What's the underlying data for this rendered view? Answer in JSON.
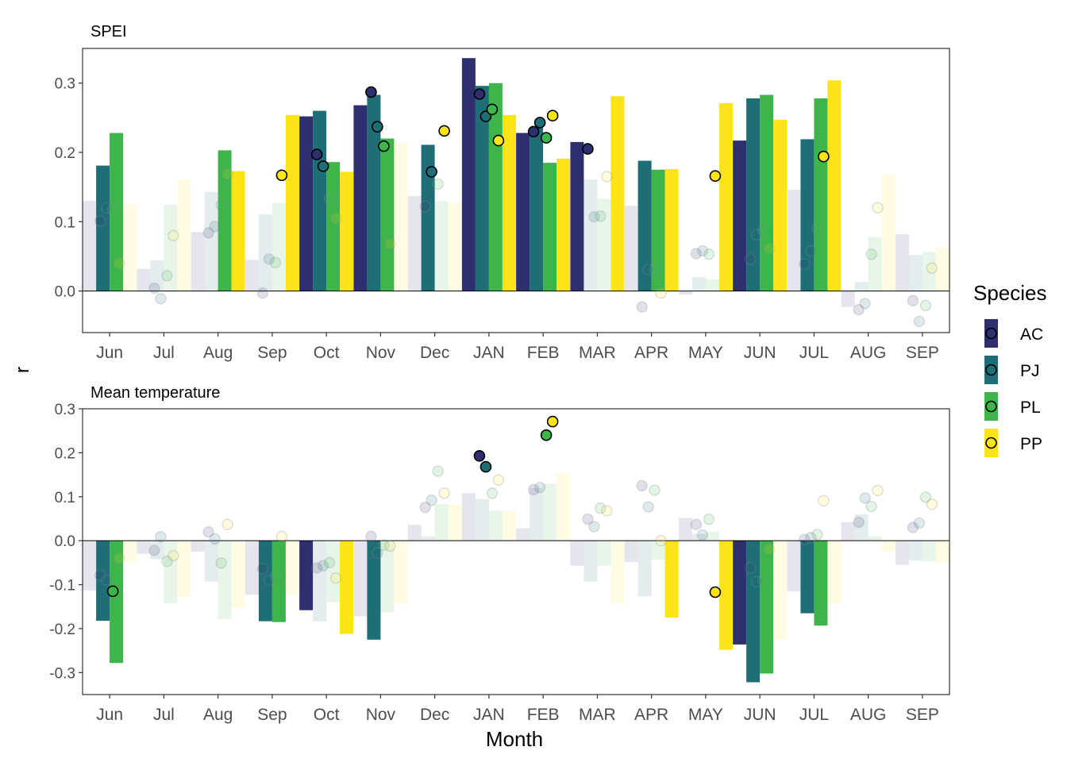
{
  "y_axis_label": "r",
  "x_axis_label": "Month",
  "legend": {
    "title": "Species",
    "items": [
      {
        "label": "AC",
        "color": "#2D2F6E"
      },
      {
        "label": "PJ",
        "color": "#1E6E77"
      },
      {
        "label": "PL",
        "color": "#3DB54A"
      },
      {
        "label": "PP",
        "color": "#FDE417"
      }
    ]
  },
  "chart_data": [
    {
      "type": "bar",
      "title": "SPEI",
      "xlabel": "Month",
      "ylabel": "r",
      "ylim": [
        -0.06,
        0.35
      ],
      "yticks": [
        0.0,
        0.1,
        0.2,
        0.3
      ],
      "ytick_labels": [
        "0.0",
        "0.1",
        "0.2",
        "0.3"
      ],
      "grid": false,
      "legend_position": "right",
      "categories": [
        "Jun",
        "Jul",
        "Aug",
        "Sep",
        "Oct",
        "Nov",
        "Dec",
        "JAN",
        "FEB",
        "MAR",
        "APR",
        "MAY",
        "JUN",
        "JUL",
        "AUG",
        "SEP"
      ],
      "series": [
        {
          "name": "AC",
          "bar_values": [
            0.13,
            0.032,
            0.085,
            0.045,
            0.252,
            0.268,
            0.137,
            0.336,
            0.228,
            0.215,
            0.123,
            -0.005,
            0.217,
            0.146,
            -0.023,
            0.082
          ],
          "bar_significant": [
            false,
            false,
            false,
            false,
            true,
            true,
            false,
            true,
            true,
            true,
            false,
            false,
            true,
            false,
            false,
            false
          ],
          "point_values": [
            0.101,
            0.004,
            0.084,
            -0.003,
            0.197,
            0.287,
            0.122,
            0.284,
            0.23,
            0.205,
            -0.023,
            0.054,
            0.046,
            0.039,
            -0.027,
            -0.014
          ],
          "point_significant": [
            false,
            false,
            false,
            false,
            true,
            true,
            false,
            true,
            true,
            true,
            false,
            false,
            false,
            false,
            false,
            false
          ]
        },
        {
          "name": "PJ",
          "bar_values": [
            0.181,
            0.044,
            0.143,
            0.111,
            0.26,
            0.283,
            0.211,
            0.296,
            0.236,
            0.161,
            0.188,
            0.02,
            0.278,
            0.219,
            0.013,
            0.052
          ],
          "bar_significant": [
            true,
            false,
            false,
            false,
            true,
            true,
            true,
            true,
            true,
            false,
            true,
            false,
            true,
            true,
            false,
            false
          ],
          "point_values": [
            0.12,
            -0.011,
            0.093,
            0.046,
            0.18,
            0.237,
            0.172,
            0.252,
            0.243,
            0.107,
            0.031,
            0.058,
            0.081,
            0.058,
            -0.018,
            -0.044
          ],
          "point_significant": [
            false,
            false,
            false,
            false,
            true,
            true,
            true,
            true,
            true,
            false,
            false,
            false,
            false,
            false,
            false,
            false
          ]
        },
        {
          "name": "PL",
          "bar_values": [
            0.228,
            0.124,
            0.203,
            0.127,
            0.186,
            0.22,
            0.13,
            0.3,
            0.185,
            0.133,
            0.175,
            0.017,
            0.283,
            0.278,
            0.078,
            0.056
          ],
          "bar_significant": [
            true,
            false,
            true,
            false,
            true,
            true,
            false,
            true,
            true,
            false,
            true,
            false,
            true,
            true,
            false,
            false
          ],
          "point_values": [
            0.118,
            0.022,
            0.124,
            0.041,
            0.133,
            0.209,
            0.154,
            0.262,
            0.221,
            0.108,
            0.031,
            0.053,
            0.087,
            0.09,
            0.053,
            -0.021
          ],
          "point_significant": [
            false,
            false,
            false,
            false,
            false,
            true,
            false,
            true,
            true,
            false,
            false,
            false,
            false,
            false,
            false,
            false
          ]
        },
        {
          "name": "PP",
          "bar_values": [
            0.125,
            0.161,
            0.173,
            0.254,
            0.172,
            0.214,
            0.127,
            0.254,
            0.191,
            0.281,
            0.176,
            0.271,
            0.247,
            0.304,
            0.168,
            0.063
          ],
          "bar_significant": [
            false,
            false,
            true,
            true,
            true,
            false,
            false,
            true,
            true,
            true,
            true,
            true,
            true,
            true,
            false,
            false
          ],
          "point_values": [
            0.04,
            0.08,
            0.169,
            0.167,
            0.105,
            0.068,
            0.231,
            0.217,
            0.253,
            0.165,
            -0.003,
            0.166,
            0.061,
            0.194,
            0.12,
            0.033
          ],
          "point_significant": [
            false,
            false,
            false,
            true,
            false,
            false,
            true,
            true,
            true,
            false,
            false,
            true,
            false,
            true,
            false,
            false
          ]
        }
      ]
    },
    {
      "type": "bar",
      "title": "Mean temperature",
      "xlabel": "Month",
      "ylabel": "r",
      "ylim": [
        -0.35,
        0.3
      ],
      "yticks": [
        -0.3,
        -0.2,
        -0.1,
        0.0,
        0.1,
        0.2,
        0.3
      ],
      "ytick_labels": [
        "-0.3",
        "-0.2",
        "-0.1",
        "0.0",
        "0.1",
        "0.2",
        "0.3"
      ],
      "grid": false,
      "legend_position": "right",
      "categories": [
        "Jun",
        "Jul",
        "Aug",
        "Sep",
        "Oct",
        "Nov",
        "Dec",
        "JAN",
        "FEB",
        "MAR",
        "APR",
        "MAY",
        "JUN",
        "JUL",
        "AUG",
        "SEP"
      ],
      "series": [
        {
          "name": "AC",
          "bar_values": [
            -0.113,
            -0.03,
            -0.025,
            -0.123,
            -0.158,
            -0.172,
            0.036,
            0.108,
            0.028,
            -0.057,
            -0.048,
            0.052,
            -0.236,
            -0.115,
            0.042,
            -0.055
          ],
          "bar_significant": [
            false,
            false,
            false,
            false,
            true,
            false,
            false,
            false,
            false,
            false,
            false,
            false,
            true,
            false,
            false,
            false
          ],
          "point_values": [
            -0.079,
            -0.022,
            0.02,
            -0.064,
            -0.062,
            0.01,
            0.076,
            0.193,
            0.116,
            0.049,
            0.125,
            0.037,
            -0.062,
            0.003,
            0.042,
            0.03
          ],
          "point_significant": [
            false,
            false,
            false,
            false,
            false,
            false,
            false,
            true,
            false,
            false,
            false,
            false,
            false,
            false,
            false,
            false
          ]
        },
        {
          "name": "PJ",
          "bar_values": [
            -0.182,
            -0.042,
            -0.093,
            -0.183,
            -0.183,
            -0.225,
            0.01,
            0.095,
            0.12,
            -0.093,
            -0.127,
            0.015,
            -0.322,
            -0.165,
            0.06,
            -0.045
          ],
          "bar_significant": [
            true,
            false,
            false,
            true,
            false,
            true,
            false,
            false,
            false,
            false,
            false,
            false,
            true,
            true,
            false,
            false
          ],
          "point_values": [
            -0.09,
            0.009,
            0.004,
            -0.09,
            -0.057,
            -0.028,
            0.092,
            0.168,
            0.121,
            0.032,
            0.077,
            0.013,
            -0.093,
            0.007,
            0.097,
            0.04
          ],
          "point_significant": [
            false,
            false,
            false,
            false,
            false,
            false,
            false,
            true,
            false,
            false,
            false,
            false,
            false,
            false,
            false,
            false
          ]
        },
        {
          "name": "PL",
          "bar_values": [
            -0.278,
            -0.142,
            -0.178,
            -0.185,
            -0.14,
            -0.163,
            0.083,
            0.068,
            0.13,
            -0.057,
            -0.043,
            0.02,
            -0.302,
            -0.193,
            0.01,
            -0.047
          ],
          "bar_significant": [
            true,
            false,
            false,
            true,
            false,
            false,
            false,
            false,
            false,
            false,
            false,
            false,
            true,
            true,
            false,
            false
          ],
          "point_values": [
            -0.115,
            -0.047,
            -0.051,
            -0.08,
            -0.05,
            -0.01,
            0.158,
            0.108,
            0.24,
            0.074,
            0.115,
            0.049,
            -0.09,
            0.014,
            0.078,
            0.099
          ],
          "point_significant": [
            true,
            false,
            false,
            false,
            false,
            false,
            false,
            false,
            true,
            false,
            false,
            false,
            false,
            false,
            false,
            false
          ]
        },
        {
          "name": "PP",
          "bar_values": [
            -0.05,
            -0.127,
            -0.153,
            -0.123,
            -0.212,
            -0.143,
            0.081,
            0.068,
            0.153,
            -0.143,
            -0.175,
            -0.248,
            -0.225,
            -0.143,
            -0.025,
            -0.05
          ],
          "bar_significant": [
            false,
            false,
            false,
            false,
            true,
            false,
            false,
            false,
            false,
            false,
            true,
            true,
            false,
            false,
            false,
            false
          ],
          "point_values": [
            -0.04,
            -0.034,
            0.037,
            0.01,
            -0.085,
            -0.012,
            0.108,
            0.138,
            0.271,
            0.068,
            0.0,
            -0.117,
            -0.02,
            0.091,
            0.114,
            0.083
          ],
          "point_significant": [
            false,
            false,
            false,
            false,
            false,
            false,
            false,
            false,
            true,
            false,
            false,
            true,
            false,
            false,
            false,
            false
          ]
        }
      ]
    }
  ]
}
